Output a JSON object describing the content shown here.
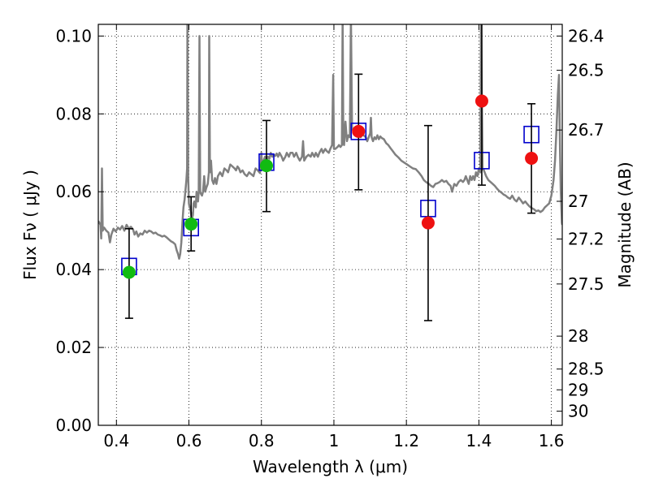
{
  "chart_data": {
    "type": "scatter",
    "title": "",
    "xlabel": "Wavelength  λ (μm)",
    "ylabel": "Flux  Fν  ( μJy )",
    "y2label": "Magnitude (AB)",
    "xlim": [
      0.35,
      1.63
    ],
    "ylim": [
      0.0,
      0.103
    ],
    "grid": true,
    "x_ticks": [
      {
        "value": 0.4,
        "label": "0.4"
      },
      {
        "value": 0.6,
        "label": "0.6"
      },
      {
        "value": 0.8,
        "label": "0.8"
      },
      {
        "value": 1.0,
        "label": "1"
      },
      {
        "value": 1.2,
        "label": "1.2"
      },
      {
        "value": 1.4,
        "label": "1.4"
      },
      {
        "value": 1.6,
        "label": "1.6"
      }
    ],
    "y_ticks": [
      {
        "value": 0.0,
        "label": "0.00"
      },
      {
        "value": 0.02,
        "label": "0.02"
      },
      {
        "value": 0.04,
        "label": "0.04"
      },
      {
        "value": 0.06,
        "label": "0.06"
      },
      {
        "value": 0.08,
        "label": "0.08"
      },
      {
        "value": 0.1,
        "label": "0.10"
      }
    ],
    "mag_ticks": [
      {
        "value": 26.4,
        "label": "26.4"
      },
      {
        "value": 26.5,
        "label": "26.5"
      },
      {
        "value": 26.7,
        "label": "26.7"
      },
      {
        "value": 27.0,
        "label": "27"
      },
      {
        "value": 27.2,
        "label": "27.2"
      },
      {
        "value": 27.5,
        "label": "27.5"
      },
      {
        "value": 28.0,
        "label": "28"
      },
      {
        "value": 28.5,
        "label": "28.5"
      },
      {
        "value": 29.0,
        "label": "29"
      },
      {
        "value": 30.0,
        "label": "30"
      }
    ],
    "series": [
      {
        "kind": "observed_optical",
        "color": "#11bb11",
        "points": [
          {
            "x": 0.435,
            "y": 0.0393,
            "yerr_low": 0.0275,
            "yerr_high": 0.0505
          },
          {
            "x": 0.606,
            "y": 0.0517,
            "yerr_low": 0.0448,
            "yerr_high": 0.0587
          },
          {
            "x": 0.814,
            "y": 0.0667,
            "yerr_low": 0.0549,
            "yerr_high": 0.0783
          }
        ]
      },
      {
        "kind": "observed_nir",
        "color": "#ee1111",
        "points": [
          {
            "x": 1.068,
            "y": 0.0755,
            "yerr_low": 0.0605,
            "yerr_high": 0.0902
          },
          {
            "x": 1.26,
            "y": 0.052,
            "yerr_low": 0.0269,
            "yerr_high": 0.077
          },
          {
            "x": 1.408,
            "y": 0.0833,
            "yerr_low": 0.0617,
            "yerr_high": 0.104
          },
          {
            "x": 1.545,
            "y": 0.0686,
            "yerr_low": 0.0545,
            "yerr_high": 0.0826
          }
        ]
      },
      {
        "kind": "model_photometry",
        "color": "#0000cc",
        "points": [
          {
            "x": 0.435,
            "y": 0.0408
          },
          {
            "x": 0.606,
            "y": 0.0508
          },
          {
            "x": 0.814,
            "y": 0.0676
          },
          {
            "x": 1.068,
            "y": 0.0755
          },
          {
            "x": 1.26,
            "y": 0.0557
          },
          {
            "x": 1.408,
            "y": 0.068
          },
          {
            "x": 1.545,
            "y": 0.0747
          }
        ]
      }
    ],
    "spectrum": {
      "color": "#808080",
      "points": [
        [
          0.35,
          0.0525
        ],
        [
          0.356,
          0.0515
        ],
        [
          0.358,
          0.048
        ],
        [
          0.36,
          0.066
        ],
        [
          0.362,
          0.05
        ],
        [
          0.366,
          0.0508
        ],
        [
          0.372,
          0.05
        ],
        [
          0.378,
          0.0495
        ],
        [
          0.382,
          0.047
        ],
        [
          0.386,
          0.049
        ],
        [
          0.392,
          0.0505
        ],
        [
          0.398,
          0.0498
        ],
        [
          0.404,
          0.0508
        ],
        [
          0.41,
          0.0503
        ],
        [
          0.416,
          0.0512
        ],
        [
          0.422,
          0.05
        ],
        [
          0.428,
          0.0515
        ],
        [
          0.434,
          0.0505
        ],
        [
          0.44,
          0.051
        ],
        [
          0.446,
          0.0503
        ],
        [
          0.45,
          0.049
        ],
        [
          0.455,
          0.0498
        ],
        [
          0.46,
          0.0485
        ],
        [
          0.466,
          0.0493
        ],
        [
          0.472,
          0.049
        ],
        [
          0.478,
          0.05
        ],
        [
          0.484,
          0.0495
        ],
        [
          0.49,
          0.05
        ],
        [
          0.496,
          0.0498
        ],
        [
          0.502,
          0.0493
        ],
        [
          0.508,
          0.0495
        ],
        [
          0.514,
          0.049
        ],
        [
          0.52,
          0.0488
        ],
        [
          0.526,
          0.0485
        ],
        [
          0.532,
          0.0487
        ],
        [
          0.538,
          0.0483
        ],
        [
          0.544,
          0.0478
        ],
        [
          0.55,
          0.0473
        ],
        [
          0.556,
          0.047
        ],
        [
          0.562,
          0.0465
        ],
        [
          0.566,
          0.045
        ],
        [
          0.57,
          0.044
        ],
        [
          0.573,
          0.0428
        ],
        [
          0.576,
          0.044
        ],
        [
          0.579,
          0.047
        ],
        [
          0.582,
          0.052
        ],
        [
          0.585,
          0.056
        ],
        [
          0.588,
          0.058
        ],
        [
          0.59,
          0.06
        ],
        [
          0.593,
          0.063
        ],
        [
          0.595,
          0.066
        ],
        [
          0.596,
          0.105
        ],
        [
          0.598,
          0.064
        ],
        [
          0.6,
          0.057
        ],
        [
          0.602,
          0.056
        ],
        [
          0.604,
          0.0555
        ],
        [
          0.606,
          0.0545
        ],
        [
          0.608,
          0.053
        ],
        [
          0.611,
          0.054
        ],
        [
          0.613,
          0.057
        ],
        [
          0.615,
          0.0575
        ],
        [
          0.617,
          0.0565
        ],
        [
          0.619,
          0.056
        ],
        [
          0.621,
          0.06
        ],
        [
          0.623,
          0.058
        ],
        [
          0.625,
          0.0575
        ],
        [
          0.627,
          0.06
        ],
        [
          0.629,
          0.1
        ],
        [
          0.631,
          0.06
        ],
        [
          0.633,
          0.0595
        ],
        [
          0.636,
          0.059
        ],
        [
          0.639,
          0.06
        ],
        [
          0.642,
          0.064
        ],
        [
          0.645,
          0.06
        ],
        [
          0.648,
          0.061
        ],
        [
          0.652,
          0.062
        ],
        [
          0.655,
          0.065
        ],
        [
          0.656,
          0.1
        ],
        [
          0.658,
          0.065
        ],
        [
          0.661,
          0.068
        ],
        [
          0.664,
          0.063
        ],
        [
          0.668,
          0.062
        ],
        [
          0.672,
          0.0635
        ],
        [
          0.676,
          0.062
        ],
        [
          0.68,
          0.064
        ],
        [
          0.686,
          0.065
        ],
        [
          0.692,
          0.064
        ],
        [
          0.698,
          0.066
        ],
        [
          0.704,
          0.0655
        ],
        [
          0.708,
          0.065
        ],
        [
          0.714,
          0.067
        ],
        [
          0.72,
          0.0665
        ],
        [
          0.726,
          0.066
        ],
        [
          0.73,
          0.0655
        ],
        [
          0.734,
          0.0665
        ],
        [
          0.738,
          0.066
        ],
        [
          0.742,
          0.065
        ],
        [
          0.748,
          0.0655
        ],
        [
          0.754,
          0.0645
        ],
        [
          0.76,
          0.064
        ],
        [
          0.766,
          0.065
        ],
        [
          0.772,
          0.0645
        ],
        [
          0.778,
          0.064
        ],
        [
          0.784,
          0.066
        ],
        [
          0.79,
          0.0655
        ],
        [
          0.796,
          0.0648
        ],
        [
          0.8,
          0.07
        ],
        [
          0.802,
          0.0665
        ],
        [
          0.806,
          0.068
        ],
        [
          0.81,
          0.069
        ],
        [
          0.814,
          0.068
        ],
        [
          0.818,
          0.069
        ],
        [
          0.822,
          0.0685
        ],
        [
          0.826,
          0.07
        ],
        [
          0.83,
          0.069
        ],
        [
          0.834,
          0.0695
        ],
        [
          0.838,
          0.0692
        ],
        [
          0.842,
          0.0698
        ],
        [
          0.846,
          0.069
        ],
        [
          0.85,
          0.07
        ],
        [
          0.856,
          0.069
        ],
        [
          0.86,
          0.068
        ],
        [
          0.866,
          0.069
        ],
        [
          0.87,
          0.07
        ],
        [
          0.876,
          0.069
        ],
        [
          0.88,
          0.07
        ],
        [
          0.886,
          0.07
        ],
        [
          0.89,
          0.069
        ],
        [
          0.896,
          0.07
        ],
        [
          0.9,
          0.069
        ],
        [
          0.906,
          0.068
        ],
        [
          0.912,
          0.069
        ],
        [
          0.915,
          0.073
        ],
        [
          0.918,
          0.068
        ],
        [
          0.924,
          0.069
        ],
        [
          0.93,
          0.0695
        ],
        [
          0.936,
          0.069
        ],
        [
          0.94,
          0.07
        ],
        [
          0.946,
          0.069
        ],
        [
          0.95,
          0.07
        ],
        [
          0.956,
          0.069
        ],
        [
          0.96,
          0.07
        ],
        [
          0.966,
          0.071
        ],
        [
          0.97,
          0.07
        ],
        [
          0.976,
          0.071
        ],
        [
          0.98,
          0.0705
        ],
        [
          0.986,
          0.07
        ],
        [
          0.99,
          0.071
        ],
        [
          0.995,
          0.072
        ],
        [
          0.998,
          0.09
        ],
        [
          1.0,
          0.071
        ],
        [
          1.004,
          0.071
        ],
        [
          1.01,
          0.0715
        ],
        [
          1.014,
          0.072
        ],
        [
          1.018,
          0.0715
        ],
        [
          1.022,
          0.072
        ],
        [
          1.024,
          0.105
        ],
        [
          1.026,
          0.0725
        ],
        [
          1.028,
          0.072
        ],
        [
          1.032,
          0.078
        ],
        [
          1.036,
          0.073
        ],
        [
          1.04,
          0.0745
        ],
        [
          1.044,
          0.074
        ],
        [
          1.047,
          0.105
        ],
        [
          1.05,
          0.076
        ],
        [
          1.052,
          0.076
        ],
        [
          1.056,
          0.075
        ],
        [
          1.06,
          0.0755
        ],
        [
          1.064,
          0.0745
        ],
        [
          1.07,
          0.0755
        ],
        [
          1.074,
          0.074
        ],
        [
          1.078,
          0.075
        ],
        [
          1.082,
          0.0745
        ],
        [
          1.088,
          0.074
        ],
        [
          1.092,
          0.073
        ],
        [
          1.096,
          0.074
        ],
        [
          1.1,
          0.075
        ],
        [
          1.102,
          0.079
        ],
        [
          1.104,
          0.074
        ],
        [
          1.108,
          0.073
        ],
        [
          1.112,
          0.074
        ],
        [
          1.116,
          0.0735
        ],
        [
          1.12,
          0.0745
        ],
        [
          1.124,
          0.0735
        ],
        [
          1.128,
          0.0742
        ],
        [
          1.132,
          0.0738
        ],
        [
          1.138,
          0.0735
        ],
        [
          1.144,
          0.0725
        ],
        [
          1.15,
          0.072
        ],
        [
          1.156,
          0.0712
        ],
        [
          1.162,
          0.0705
        ],
        [
          1.17,
          0.0695
        ],
        [
          1.178,
          0.0688
        ],
        [
          1.186,
          0.068
        ],
        [
          1.194,
          0.0675
        ],
        [
          1.202,
          0.067
        ],
        [
          1.21,
          0.0665
        ],
        [
          1.218,
          0.066
        ],
        [
          1.226,
          0.0658
        ],
        [
          1.234,
          0.065
        ],
        [
          1.242,
          0.064
        ],
        [
          1.248,
          0.063
        ],
        [
          1.254,
          0.0625
        ],
        [
          1.262,
          0.062
        ],
        [
          1.268,
          0.0615
        ],
        [
          1.274,
          0.0612
        ],
        [
          1.28,
          0.062
        ],
        [
          1.286,
          0.0622
        ],
        [
          1.292,
          0.0625
        ],
        [
          1.298,
          0.063
        ],
        [
          1.304,
          0.0625
        ],
        [
          1.31,
          0.0628
        ],
        [
          1.316,
          0.062
        ],
        [
          1.322,
          0.0615
        ],
        [
          1.326,
          0.06
        ],
        [
          1.332,
          0.062
        ],
        [
          1.338,
          0.0615
        ],
        [
          1.344,
          0.0625
        ],
        [
          1.35,
          0.063
        ],
        [
          1.356,
          0.0625
        ],
        [
          1.36,
          0.063
        ],
        [
          1.364,
          0.064
        ],
        [
          1.368,
          0.063
        ],
        [
          1.372,
          0.062
        ],
        [
          1.376,
          0.064
        ],
        [
          1.38,
          0.063
        ],
        [
          1.384,
          0.064
        ],
        [
          1.388,
          0.063
        ],
        [
          1.392,
          0.065
        ],
        [
          1.396,
          0.064
        ],
        [
          1.4,
          0.066
        ],
        [
          1.404,
          0.065
        ],
        [
          1.406,
          0.105
        ],
        [
          1.41,
          0.066
        ],
        [
          1.414,
          0.0655
        ],
        [
          1.42,
          0.064
        ],
        [
          1.426,
          0.063
        ],
        [
          1.432,
          0.0625
        ],
        [
          1.438,
          0.062
        ],
        [
          1.444,
          0.0615
        ],
        [
          1.45,
          0.0608
        ],
        [
          1.456,
          0.0602
        ],
        [
          1.462,
          0.0598
        ],
        [
          1.468,
          0.0593
        ],
        [
          1.474,
          0.059
        ],
        [
          1.48,
          0.0585
        ],
        [
          1.486,
          0.0582
        ],
        [
          1.492,
          0.059
        ],
        [
          1.498,
          0.058
        ],
        [
          1.504,
          0.0575
        ],
        [
          1.51,
          0.0585
        ],
        [
          1.516,
          0.0578
        ],
        [
          1.522,
          0.057
        ],
        [
          1.528,
          0.0575
        ],
        [
          1.534,
          0.0568
        ],
        [
          1.54,
          0.0562
        ],
        [
          1.546,
          0.0558
        ],
        [
          1.552,
          0.0555
        ],
        [
          1.558,
          0.055
        ],
        [
          1.564,
          0.0552
        ],
        [
          1.57,
          0.0548
        ],
        [
          1.576,
          0.0552
        ],
        [
          1.582,
          0.056
        ],
        [
          1.588,
          0.0565
        ],
        [
          1.594,
          0.057
        ],
        [
          1.6,
          0.059
        ],
        [
          1.606,
          0.063
        ],
        [
          1.61,
          0.068
        ],
        [
          1.614,
          0.076
        ],
        [
          1.618,
          0.085
        ],
        [
          1.621,
          0.09
        ],
        [
          1.624,
          0.07
        ],
        [
          1.626,
          0.06
        ],
        [
          1.629,
          0.052
        ],
        [
          1.63,
          0.0515
        ]
      ]
    }
  }
}
